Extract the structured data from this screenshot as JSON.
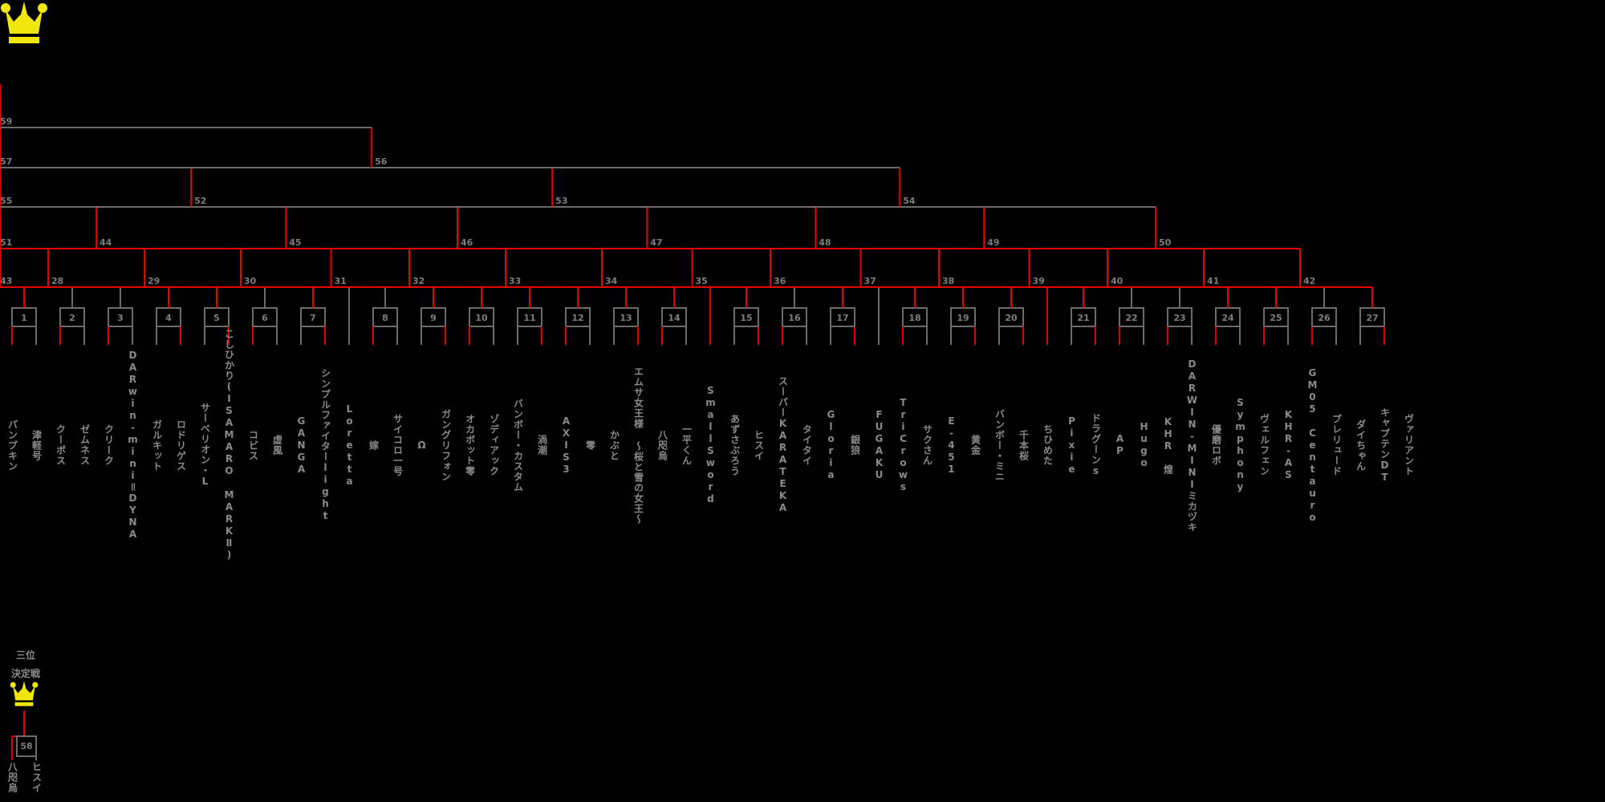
{
  "title": "tournament bracket",
  "colors": {
    "background": "#000000",
    "line_gray": "#6b6b6b",
    "line_red": "#e60000",
    "label_gray": "#7d7d7d",
    "name_gray": "#8a8a8a",
    "crown_yellow": "#f2e70c"
  },
  "players": [
    {
      "col": 0,
      "name": "パンプキン"
    },
    {
      "col": 1,
      "name": "津軽号"
    },
    {
      "col": 2,
      "name": "クーポス"
    },
    {
      "col": 3,
      "name": "ゼムネス"
    },
    {
      "col": 4,
      "name": "クリーク"
    },
    {
      "col": 5,
      "name": "DARwin-mini＝DYNA"
    },
    {
      "col": 6,
      "name": "ガルキット"
    },
    {
      "col": 7,
      "name": "ロドリゲス"
    },
    {
      "col": 8,
      "name": "サーベリオン・L"
    },
    {
      "col": 9,
      "name": "こしひかり(ISAMARO MARKⅡ)"
    },
    {
      "col": 10,
      "name": "コビス"
    },
    {
      "col": 11,
      "name": "虚風"
    },
    {
      "col": 12,
      "name": "GANGA"
    },
    {
      "col": 13,
      "name": "シンプルファイターlight"
    },
    {
      "col": 14,
      "name": "Loretta"
    },
    {
      "col": 15,
      "name": "嫁"
    },
    {
      "col": 16,
      "name": "サイコロ一号"
    },
    {
      "col": 17,
      "name": "Ω"
    },
    {
      "col": 18,
      "name": "ガングリフォン"
    },
    {
      "col": 19,
      "name": "オカボット零"
    },
    {
      "col": 20,
      "name": "ゾディアック"
    },
    {
      "col": 21,
      "name": "バンボー・カスタム"
    },
    {
      "col": 22,
      "name": "渦潮"
    },
    {
      "col": 23,
      "name": "AXIS3"
    },
    {
      "col": 24,
      "name": "零"
    },
    {
      "col": 25,
      "name": "かぶと"
    },
    {
      "col": 26,
      "name": "エムサ女王様 ～桜と雪の女王～"
    },
    {
      "col": 27,
      "name": "八咫烏"
    },
    {
      "col": 28,
      "name": "一平くん"
    },
    {
      "col": 29,
      "name": "SmallSword"
    },
    {
      "col": 30,
      "name": "あずさぶろう"
    },
    {
      "col": 31,
      "name": "ヒスイ"
    },
    {
      "col": 32,
      "name": "スーパーKARATEKA"
    },
    {
      "col": 33,
      "name": "タイタイ"
    },
    {
      "col": 34,
      "name": "Gloria"
    },
    {
      "col": 35,
      "name": "銀狼"
    },
    {
      "col": 36,
      "name": "FUGAKU"
    },
    {
      "col": 37,
      "name": "TriCrows"
    },
    {
      "col": 38,
      "name": "サクさん"
    },
    {
      "col": 39,
      "name": "E-451"
    },
    {
      "col": 40,
      "name": "黄金"
    },
    {
      "col": 41,
      "name": "バンボー・ミニ"
    },
    {
      "col": 42,
      "name": "千本桜"
    },
    {
      "col": 43,
      "name": "ちひめた"
    },
    {
      "col": 44,
      "name": "Pixie"
    },
    {
      "col": 45,
      "name": "ドラグーンs"
    },
    {
      "col": 46,
      "name": "AP"
    },
    {
      "col": 47,
      "name": "Hugo"
    },
    {
      "col": 48,
      "name": "KHR 煌"
    },
    {
      "col": 49,
      "name": "DARWIN-MINIミカヅキ"
    },
    {
      "col": 50,
      "name": "優磨ロボ"
    },
    {
      "col": 51,
      "name": "Symphony"
    },
    {
      "col": 52,
      "name": "ヴェルフェン"
    },
    {
      "col": 53,
      "name": "KHR-AS"
    },
    {
      "col": 54,
      "name": "GM05 Centauro"
    },
    {
      "col": 55,
      "name": "プレリュード"
    },
    {
      "col": 56,
      "name": "ダイちゃん"
    },
    {
      "col": 57,
      "name": "キャプテンDT"
    },
    {
      "col": 58,
      "name": "ヴァリアント"
    }
  ],
  "slots": [
    {
      "t": "b",
      "n": 1,
      "c": [
        0,
        1
      ],
      "w": "L",
      "adv": true
    },
    {
      "t": "b",
      "n": 2,
      "c": [
        2,
        3
      ],
      "w": "L",
      "adv": false
    },
    {
      "t": "b",
      "n": 3,
      "c": [
        4,
        5
      ],
      "w": "L",
      "adv": false
    },
    {
      "t": "b",
      "n": 4,
      "c": [
        6,
        7
      ],
      "w": "R",
      "adv": true
    },
    {
      "t": "b",
      "n": 5,
      "c": [
        8,
        9
      ],
      "w": "R",
      "adv": true
    },
    {
      "t": "b",
      "n": 6,
      "c": [
        10,
        11
      ],
      "w": "L",
      "adv": false
    },
    {
      "t": "b",
      "n": 7,
      "c": [
        12,
        13
      ],
      "w": "R",
      "adv": true
    },
    {
      "t": "y",
      "c": 14,
      "adv": false
    },
    {
      "t": "b",
      "n": 8,
      "c": [
        15,
        16
      ],
      "w": "L",
      "adv": false
    },
    {
      "t": "b",
      "n": 9,
      "c": [
        17,
        18
      ],
      "w": "R",
      "adv": true
    },
    {
      "t": "b",
      "n": 10,
      "c": [
        19,
        20
      ],
      "w": "L",
      "adv": true
    },
    {
      "t": "b",
      "n": 11,
      "c": [
        21,
        22
      ],
      "w": "R",
      "adv": true
    },
    {
      "t": "b",
      "n": 12,
      "c": [
        23,
        24
      ],
      "w": "L",
      "adv": true
    },
    {
      "t": "b",
      "n": 13,
      "c": [
        25,
        26
      ],
      "w": "R",
      "adv": true
    },
    {
      "t": "b",
      "n": 14,
      "c": [
        27,
        28
      ],
      "w": "L",
      "adv": true
    },
    {
      "t": "y",
      "c": 29,
      "adv": true
    },
    {
      "t": "b",
      "n": 15,
      "c": [
        30,
        31
      ],
      "w": "R",
      "adv": true
    },
    {
      "t": "b",
      "n": 16,
      "c": [
        32,
        33
      ],
      "w": "L",
      "adv": false
    },
    {
      "t": "b",
      "n": 17,
      "c": [
        34,
        35
      ],
      "w": "R",
      "adv": true
    },
    {
      "t": "y",
      "c": 36,
      "adv": false
    },
    {
      "t": "b",
      "n": 18,
      "c": [
        37,
        38
      ],
      "w": "L",
      "adv": true
    },
    {
      "t": "b",
      "n": 19,
      "c": [
        39,
        40
      ],
      "w": "R",
      "adv": true
    },
    {
      "t": "b",
      "n": 20,
      "c": [
        41,
        42
      ],
      "w": "R",
      "adv": true
    },
    {
      "t": "y",
      "c": 43,
      "adv": true
    },
    {
      "t": "b",
      "n": 21,
      "c": [
        44,
        45
      ],
      "w": "R",
      "adv": true
    },
    {
      "t": "b",
      "n": 22,
      "c": [
        46,
        47
      ],
      "w": "L",
      "adv": false
    },
    {
      "t": "b",
      "n": 23,
      "c": [
        48,
        49
      ],
      "w": "L",
      "adv": false
    },
    {
      "t": "b",
      "n": 24,
      "c": [
        50,
        51
      ],
      "w": "L",
      "adv": true
    },
    {
      "t": "b",
      "n": 25,
      "c": [
        52,
        53
      ],
      "w": "L",
      "adv": true
    },
    {
      "t": "b",
      "n": 26,
      "c": [
        54,
        55
      ],
      "w": "L",
      "adv": false
    },
    {
      "t": "b",
      "n": 27,
      "c": [
        56,
        57
      ],
      "w": "R",
      "adv": true
    }
  ],
  "r2": [
    {
      "n": 28,
      "s": [
        0,
        1
      ],
      "red": "L"
    },
    {
      "n": 29,
      "s": [
        2,
        3
      ],
      "red": null
    },
    {
      "n": 30,
      "s": [
        4,
        5
      ],
      "red": "L"
    },
    {
      "n": 31,
      "s": [
        6,
        7
      ],
      "red": "L"
    },
    {
      "n": 32,
      "s": [
        8,
        9
      ],
      "red": "R"
    },
    {
      "n": 33,
      "s": [
        10,
        11
      ],
      "red": "L"
    },
    {
      "n": 34,
      "s": [
        12,
        13
      ],
      "red": "L"
    },
    {
      "n": 35,
      "s": [
        14,
        15
      ],
      "red": "L"
    },
    {
      "n": 36,
      "s": [
        16,
        17
      ],
      "red": "L"
    },
    {
      "n": 37,
      "s": [
        18,
        19
      ],
      "red": "L"
    },
    {
      "n": 38,
      "s": [
        20,
        21
      ],
      "red": null
    },
    {
      "n": 39,
      "s": [
        22,
        23
      ],
      "red": null
    },
    {
      "n": 40,
      "s": [
        24,
        25
      ],
      "red": "L"
    },
    {
      "n": 41,
      "s": [
        26,
        27
      ],
      "red": "R"
    },
    {
      "n": 42,
      "s": [
        28,
        29
      ],
      "red": "L"
    },
    {
      "n": 43,
      "s": [
        30,
        31
      ],
      "red": "L"
    }
  ],
  "r3": [
    {
      "n": 44,
      "m": [
        28,
        29
      ],
      "red": "L"
    },
    {
      "n": 45,
      "m": [
        30,
        31
      ],
      "red": null
    },
    {
      "n": 46,
      "m": [
        32,
        33
      ],
      "red": "R"
    },
    {
      "n": 47,
      "m": [
        34,
        35
      ],
      "red": "R"
    },
    {
      "n": 48,
      "m": [
        36,
        37
      ],
      "red": "L"
    },
    {
      "n": 49,
      "m": [
        38,
        39
      ],
      "red": null
    },
    {
      "n": 50,
      "m": [
        40,
        41
      ],
      "red": "L"
    },
    {
      "n": 51,
      "m": [
        42,
        43
      ],
      "red": "L"
    }
  ],
  "r4": [
    {
      "n": 52,
      "m": [
        44,
        45
      ],
      "red": "L"
    },
    {
      "n": 53,
      "m": [
        46,
        47
      ],
      "red": "R"
    },
    {
      "n": 54,
      "m": [
        48,
        49
      ],
      "red": null
    },
    {
      "n": 55,
      "m": [
        50,
        51
      ],
      "red": "R"
    }
  ],
  "r5": [
    {
      "n": 56,
      "m": [
        52,
        53
      ],
      "red": "L"
    },
    {
      "n": 57,
      "m": [
        54,
        55
      ],
      "red": "R"
    }
  ],
  "final": {
    "n": 59,
    "m": [
      56,
      57
    ],
    "red": "R"
  },
  "third_place": {
    "label_line1": "三位",
    "label_line2": "決定戦",
    "match_number": 58,
    "left_player": "八咫烏",
    "right_player": "ヒスイ",
    "winner": "L"
  }
}
